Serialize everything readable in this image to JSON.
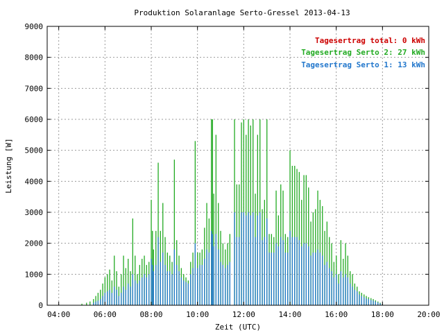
{
  "chart_data": {
    "type": "bar",
    "title": "Produktion Solaranlage Serto-Gressel 2013-04-13",
    "xlabel": "Zeit (UTC)",
    "ylabel": "Leistung [W]",
    "xlim": [
      3.5,
      20.0
    ],
    "ylim": [
      0,
      9000
    ],
    "x_ticks": [
      {
        "value": 4,
        "label": "04:00"
      },
      {
        "value": 6,
        "label": "06:00"
      },
      {
        "value": 8,
        "label": "08:00"
      },
      {
        "value": 10,
        "label": "10:00"
      },
      {
        "value": 12,
        "label": "12:00"
      },
      {
        "value": 14,
        "label": "14:00"
      },
      {
        "value": 16,
        "label": "16:00"
      },
      {
        "value": 18,
        "label": "18:00"
      },
      {
        "value": 20,
        "label": "20:00"
      }
    ],
    "y_ticks": [
      0,
      1000,
      2000,
      3000,
      4000,
      5000,
      6000,
      7000,
      8000,
      9000
    ],
    "grid": true,
    "legend_position": "top-right",
    "legend": [
      {
        "text": "Tagesertrag total: 0 kWh",
        "color": "#cc0000"
      },
      {
        "text": "Tagesertrag Serto 2: 27 kWh",
        "color": "#22aa22"
      },
      {
        "text": "Tagesertrag Serto 1: 13 kWh",
        "color": "#2277cc"
      }
    ],
    "series": [
      {
        "name": "Serto 2",
        "color": "#22aa22",
        "points": [
          [
            5.0,
            50
          ],
          [
            5.2,
            80
          ],
          [
            5.35,
            120
          ],
          [
            5.5,
            200
          ],
          [
            5.6,
            300
          ],
          [
            5.7,
            400
          ],
          [
            5.8,
            500
          ],
          [
            5.9,
            700
          ],
          [
            6.0,
            900
          ],
          [
            6.1,
            1000
          ],
          [
            6.2,
            1150
          ],
          [
            6.3,
            800
          ],
          [
            6.4,
            1600
          ],
          [
            6.5,
            1100
          ],
          [
            6.6,
            600
          ],
          [
            6.7,
            1000
          ],
          [
            6.8,
            1600
          ],
          [
            6.9,
            1200
          ],
          [
            7.0,
            1500
          ],
          [
            7.1,
            1100
          ],
          [
            7.2,
            2800
          ],
          [
            7.3,
            1600
          ],
          [
            7.4,
            1000
          ],
          [
            7.5,
            1300
          ],
          [
            7.6,
            1500
          ],
          [
            7.7,
            1600
          ],
          [
            7.8,
            1300
          ],
          [
            7.9,
            1400
          ],
          [
            8.0,
            3400
          ],
          [
            8.05,
            2400
          ],
          [
            8.1,
            1800
          ],
          [
            8.2,
            2400
          ],
          [
            8.3,
            4600
          ],
          [
            8.4,
            2400
          ],
          [
            8.5,
            3300
          ],
          [
            8.6,
            2200
          ],
          [
            8.7,
            1700
          ],
          [
            8.8,
            1600
          ],
          [
            8.9,
            1400
          ],
          [
            9.0,
            4700
          ],
          [
            9.1,
            2100
          ],
          [
            9.2,
            1600
          ],
          [
            9.3,
            1200
          ],
          [
            9.4,
            1000
          ],
          [
            9.5,
            900
          ],
          [
            9.6,
            800
          ],
          [
            9.7,
            1400
          ],
          [
            9.8,
            1700
          ],
          [
            9.9,
            5300
          ],
          [
            10.0,
            1700
          ],
          [
            10.1,
            1700
          ],
          [
            10.2,
            1800
          ],
          [
            10.3,
            2500
          ],
          [
            10.4,
            3300
          ],
          [
            10.5,
            2800
          ],
          [
            10.6,
            6000
          ],
          [
            10.65,
            6000
          ],
          [
            10.7,
            3600
          ],
          [
            10.8,
            5500
          ],
          [
            10.9,
            3300
          ],
          [
            11.0,
            2400
          ],
          [
            11.1,
            2000
          ],
          [
            11.2,
            1800
          ],
          [
            11.3,
            2000
          ],
          [
            11.4,
            2300
          ],
          [
            11.6,
            6000
          ],
          [
            11.7,
            3900
          ],
          [
            11.8,
            3900
          ],
          [
            11.9,
            5900
          ],
          [
            12.0,
            6000
          ],
          [
            12.1,
            5500
          ],
          [
            12.2,
            6000
          ],
          [
            12.3,
            5800
          ],
          [
            12.4,
            6000
          ],
          [
            12.5,
            3600
          ],
          [
            12.6,
            5500
          ],
          [
            12.7,
            6000
          ],
          [
            12.8,
            3100
          ],
          [
            12.9,
            3400
          ],
          [
            13.0,
            6000
          ],
          [
            13.1,
            2300
          ],
          [
            13.2,
            2300
          ],
          [
            13.3,
            2200
          ],
          [
            13.4,
            3700
          ],
          [
            13.5,
            2900
          ],
          [
            13.6,
            3900
          ],
          [
            13.7,
            3700
          ],
          [
            13.8,
            2300
          ],
          [
            13.9,
            2200
          ],
          [
            14.0,
            5000
          ],
          [
            14.1,
            4500
          ],
          [
            14.2,
            4500
          ],
          [
            14.3,
            4400
          ],
          [
            14.4,
            4300
          ],
          [
            14.5,
            3400
          ],
          [
            14.6,
            4200
          ],
          [
            14.7,
            4200
          ],
          [
            14.8,
            3800
          ],
          [
            14.9,
            2700
          ],
          [
            15.0,
            3000
          ],
          [
            15.1,
            3100
          ],
          [
            15.2,
            3700
          ],
          [
            15.3,
            3400
          ],
          [
            15.4,
            3200
          ],
          [
            15.5,
            2400
          ],
          [
            15.6,
            2700
          ],
          [
            15.7,
            2200
          ],
          [
            15.8,
            2000
          ],
          [
            15.9,
            1400
          ],
          [
            16.0,
            1600
          ],
          [
            16.1,
            1000
          ],
          [
            16.2,
            2100
          ],
          [
            16.3,
            1500
          ],
          [
            16.4,
            2000
          ],
          [
            16.5,
            1600
          ],
          [
            16.6,
            1100
          ],
          [
            16.7,
            1000
          ],
          [
            16.8,
            700
          ],
          [
            16.9,
            600
          ],
          [
            17.0,
            450
          ],
          [
            17.1,
            400
          ],
          [
            17.2,
            350
          ],
          [
            17.3,
            300
          ],
          [
            17.4,
            260
          ],
          [
            17.5,
            230
          ],
          [
            17.6,
            200
          ],
          [
            17.7,
            160
          ],
          [
            17.8,
            120
          ],
          [
            17.9,
            80
          ],
          [
            18.0,
            40
          ]
        ]
      },
      {
        "name": "Serto 1",
        "color": "#2277cc",
        "points": [
          [
            5.5,
            80
          ],
          [
            5.6,
            120
          ],
          [
            5.7,
            150
          ],
          [
            5.8,
            200
          ],
          [
            5.9,
            300
          ],
          [
            6.0,
            400
          ],
          [
            6.1,
            450
          ],
          [
            6.2,
            500
          ],
          [
            6.3,
            400
          ],
          [
            6.4,
            600
          ],
          [
            6.5,
            500
          ],
          [
            6.6,
            300
          ],
          [
            6.7,
            400
          ],
          [
            6.8,
            600
          ],
          [
            6.9,
            500
          ],
          [
            7.0,
            700
          ],
          [
            7.1,
            600
          ],
          [
            7.2,
            1000
          ],
          [
            7.3,
            800
          ],
          [
            7.4,
            700
          ],
          [
            7.5,
            800
          ],
          [
            7.6,
            900
          ],
          [
            7.7,
            1000
          ],
          [
            7.8,
            900
          ],
          [
            7.9,
            1000
          ],
          [
            8.0,
            1500
          ],
          [
            8.05,
            1300
          ],
          [
            8.1,
            1100
          ],
          [
            8.2,
            1300
          ],
          [
            8.3,
            2200
          ],
          [
            8.4,
            1400
          ],
          [
            8.5,
            1700
          ],
          [
            8.6,
            1300
          ],
          [
            8.7,
            1100
          ],
          [
            8.8,
            1100
          ],
          [
            8.9,
            1000
          ],
          [
            9.0,
            1800
          ],
          [
            9.1,
            1300
          ],
          [
            9.2,
            1100
          ],
          [
            9.3,
            900
          ],
          [
            9.4,
            800
          ],
          [
            9.5,
            750
          ],
          [
            9.6,
            700
          ],
          [
            9.7,
            1000
          ],
          [
            9.8,
            1200
          ],
          [
            9.9,
            2000
          ],
          [
            10.0,
            1200
          ],
          [
            10.1,
            1300
          ],
          [
            10.2,
            1300
          ],
          [
            10.3,
            1500
          ],
          [
            10.4,
            1800
          ],
          [
            10.5,
            1700
          ],
          [
            10.6,
            2400
          ],
          [
            10.65,
            2300
          ],
          [
            10.7,
            1900
          ],
          [
            10.8,
            2300
          ],
          [
            10.9,
            1800
          ],
          [
            11.0,
            1400
          ],
          [
            11.1,
            1300
          ],
          [
            11.2,
            1200
          ],
          [
            11.3,
            1300
          ],
          [
            11.4,
            1400
          ],
          [
            11.6,
            3000
          ],
          [
            11.7,
            2200
          ],
          [
            11.8,
            2200
          ],
          [
            11.9,
            3000
          ],
          [
            12.0,
            3000
          ],
          [
            12.1,
            2900
          ],
          [
            12.2,
            3000
          ],
          [
            12.3,
            2900
          ],
          [
            12.4,
            3000
          ],
          [
            12.5,
            2200
          ],
          [
            12.6,
            2900
          ],
          [
            12.7,
            3000
          ],
          [
            12.8,
            2100
          ],
          [
            12.9,
            2200
          ],
          [
            13.0,
            2800
          ],
          [
            13.1,
            1700
          ],
          [
            13.2,
            1700
          ],
          [
            13.3,
            1700
          ],
          [
            13.4,
            2000
          ],
          [
            13.5,
            1900
          ],
          [
            13.6,
            2200
          ],
          [
            13.7,
            2100
          ],
          [
            13.8,
            1700
          ],
          [
            13.9,
            1700
          ],
          [
            14.0,
            2400
          ],
          [
            14.1,
            2200
          ],
          [
            14.2,
            2200
          ],
          [
            14.3,
            2200
          ],
          [
            14.4,
            2100
          ],
          [
            14.5,
            1900
          ],
          [
            14.6,
            2000
          ],
          [
            14.7,
            2000
          ],
          [
            14.8,
            1900
          ],
          [
            14.9,
            1600
          ],
          [
            15.0,
            1700
          ],
          [
            15.1,
            1700
          ],
          [
            15.2,
            1800
          ],
          [
            15.3,
            1700
          ],
          [
            15.4,
            1600
          ],
          [
            15.5,
            1300
          ],
          [
            15.6,
            1400
          ],
          [
            15.7,
            1200
          ],
          [
            15.8,
            1100
          ],
          [
            15.9,
            900
          ],
          [
            16.0,
            1000
          ],
          [
            16.1,
            700
          ],
          [
            16.2,
            1100
          ],
          [
            16.3,
            900
          ],
          [
            16.4,
            1000
          ],
          [
            16.5,
            900
          ],
          [
            16.6,
            700
          ],
          [
            16.7,
            600
          ],
          [
            16.8,
            500
          ],
          [
            16.9,
            450
          ],
          [
            17.0,
            350
          ],
          [
            17.1,
            300
          ],
          [
            17.2,
            260
          ],
          [
            17.3,
            220
          ],
          [
            17.4,
            200
          ],
          [
            17.5,
            170
          ],
          [
            17.6,
            150
          ],
          [
            17.7,
            120
          ],
          [
            17.8,
            90
          ],
          [
            17.9,
            60
          ],
          [
            18.0,
            30
          ]
        ]
      }
    ]
  }
}
